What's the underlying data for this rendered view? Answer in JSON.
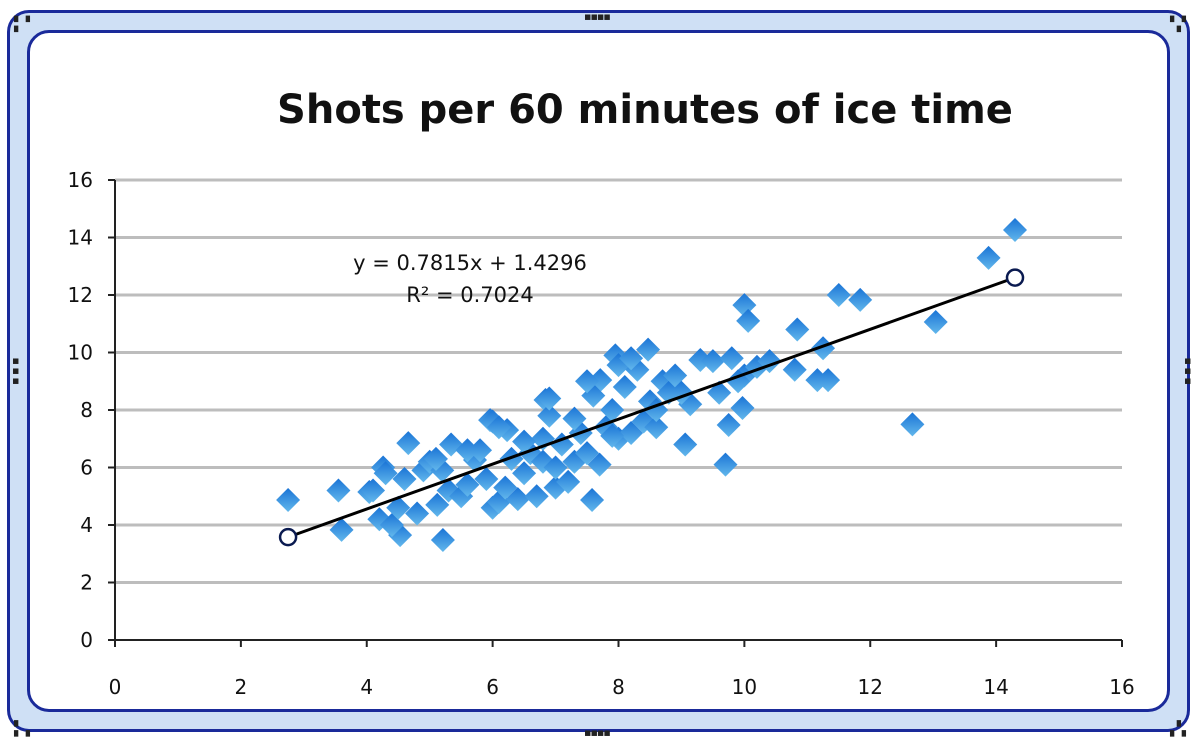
{
  "chart_data": {
    "type": "scatter",
    "title": "Shots per 60 minutes of ice time",
    "xlabel": "",
    "ylabel": "",
    "xlim": [
      0,
      16
    ],
    "ylim": [
      0,
      16
    ],
    "xticks": [
      0,
      2,
      4,
      6,
      8,
      10,
      12,
      14,
      16
    ],
    "yticks": [
      0,
      2,
      4,
      6,
      8,
      10,
      12,
      14,
      16
    ],
    "grid": "horizontal",
    "marker": "diamond",
    "colors": {
      "marker_dark": "#1a74d6",
      "marker_light": "#63b8ec",
      "gridline": "#bdbdbd",
      "trendline": "#000000",
      "frame": "#1a2a9a",
      "frame_fill": "#cfe0f5"
    },
    "trendline": {
      "slope": 0.7815,
      "intercept": 1.4296,
      "x_range": [
        2.75,
        14.3
      ],
      "equation_label": "y = 0.7815x + 1.4296",
      "r2_label": "R² = 0.7024"
    },
    "points": [
      [
        2.75,
        4.87
      ],
      [
        3.55,
        5.2
      ],
      [
        3.6,
        3.83
      ],
      [
        4.04,
        5.15
      ],
      [
        4.26,
        6.0
      ],
      [
        4.66,
        6.85
      ],
      [
        4.53,
        3.65
      ],
      [
        5.21,
        3.48
      ],
      [
        5.12,
        4.7
      ],
      [
        5.34,
        6.8
      ],
      [
        5.72,
        6.26
      ],
      [
        5.96,
        7.65
      ],
      [
        6.23,
        7.3
      ],
      [
        6.84,
        8.35
      ],
      [
        7.58,
        4.87
      ],
      [
        7.71,
        9.04
      ],
      [
        7.95,
        9.9
      ],
      [
        8.47,
        10.1
      ],
      [
        8.0,
        9.56
      ],
      [
        9.06,
        6.8
      ],
      [
        9.14,
        8.2
      ],
      [
        9.3,
        9.74
      ],
      [
        9.7,
        6.1
      ],
      [
        9.75,
        7.48
      ],
      [
        10.0,
        11.65
      ],
      [
        10.06,
        11.1
      ],
      [
        9.97,
        8.07
      ],
      [
        10.84,
        10.8
      ],
      [
        10.8,
        9.4
      ],
      [
        11.5,
        12.0
      ],
      [
        11.84,
        11.83
      ],
      [
        11.16,
        9.04
      ],
      [
        11.33,
        9.04
      ],
      [
        11.25,
        10.15
      ],
      [
        13.04,
        11.06
      ],
      [
        12.67,
        7.5
      ],
      [
        13.88,
        13.29
      ],
      [
        14.3,
        14.26
      ],
      [
        4.2,
        4.2
      ],
      [
        4.4,
        4.0
      ],
      [
        4.5,
        4.6
      ],
      [
        4.3,
        5.8
      ],
      [
        4.6,
        5.6
      ],
      [
        4.9,
        5.9
      ],
      [
        5.0,
        6.2
      ],
      [
        5.2,
        5.9
      ],
      [
        5.3,
        5.2
      ],
      [
        5.5,
        5.0
      ],
      [
        5.6,
        5.4
      ],
      [
        5.8,
        6.6
      ],
      [
        5.9,
        5.6
      ],
      [
        6.0,
        4.6
      ],
      [
        6.1,
        4.8
      ],
      [
        6.0,
        7.6
      ],
      [
        6.1,
        7.4
      ],
      [
        6.2,
        5.3
      ],
      [
        6.3,
        6.3
      ],
      [
        6.4,
        4.9
      ],
      [
        6.5,
        5.8
      ],
      [
        6.6,
        6.5
      ],
      [
        6.7,
        5.0
      ],
      [
        6.8,
        7.0
      ],
      [
        6.9,
        7.8
      ],
      [
        7.0,
        5.3
      ],
      [
        7.1,
        6.8
      ],
      [
        7.2,
        5.5
      ],
      [
        7.3,
        6.2
      ],
      [
        7.4,
        7.2
      ],
      [
        7.5,
        6.5
      ],
      [
        7.6,
        8.5
      ],
      [
        7.7,
        6.1
      ],
      [
        7.8,
        7.4
      ],
      [
        7.9,
        8.0
      ],
      [
        8.0,
        7.0
      ],
      [
        8.1,
        8.8
      ],
      [
        8.2,
        7.2
      ],
      [
        8.3,
        9.4
      ],
      [
        8.4,
        7.6
      ],
      [
        8.5,
        8.3
      ],
      [
        8.6,
        7.4
      ],
      [
        8.7,
        9.0
      ],
      [
        8.8,
        8.6
      ],
      [
        8.9,
        9.2
      ],
      [
        9.0,
        8.6
      ],
      [
        9.5,
        9.7
      ],
      [
        9.6,
        8.6
      ],
      [
        9.8,
        9.8
      ],
      [
        10.0,
        9.2
      ],
      [
        10.2,
        9.5
      ],
      [
        10.4,
        9.7
      ],
      [
        9.9,
        9.0
      ],
      [
        8.2,
        9.8
      ],
      [
        7.5,
        9.0
      ],
      [
        6.9,
        8.4
      ],
      [
        6.8,
        6.2
      ],
      [
        5.6,
        6.6
      ],
      [
        5.1,
        6.3
      ],
      [
        4.8,
        4.4
      ],
      [
        4.1,
        5.2
      ],
      [
        7.3,
        7.7
      ],
      [
        7.9,
        7.1
      ],
      [
        8.6,
        8.0
      ],
      [
        6.5,
        6.9
      ],
      [
        7.0,
        6.0
      ]
    ]
  }
}
